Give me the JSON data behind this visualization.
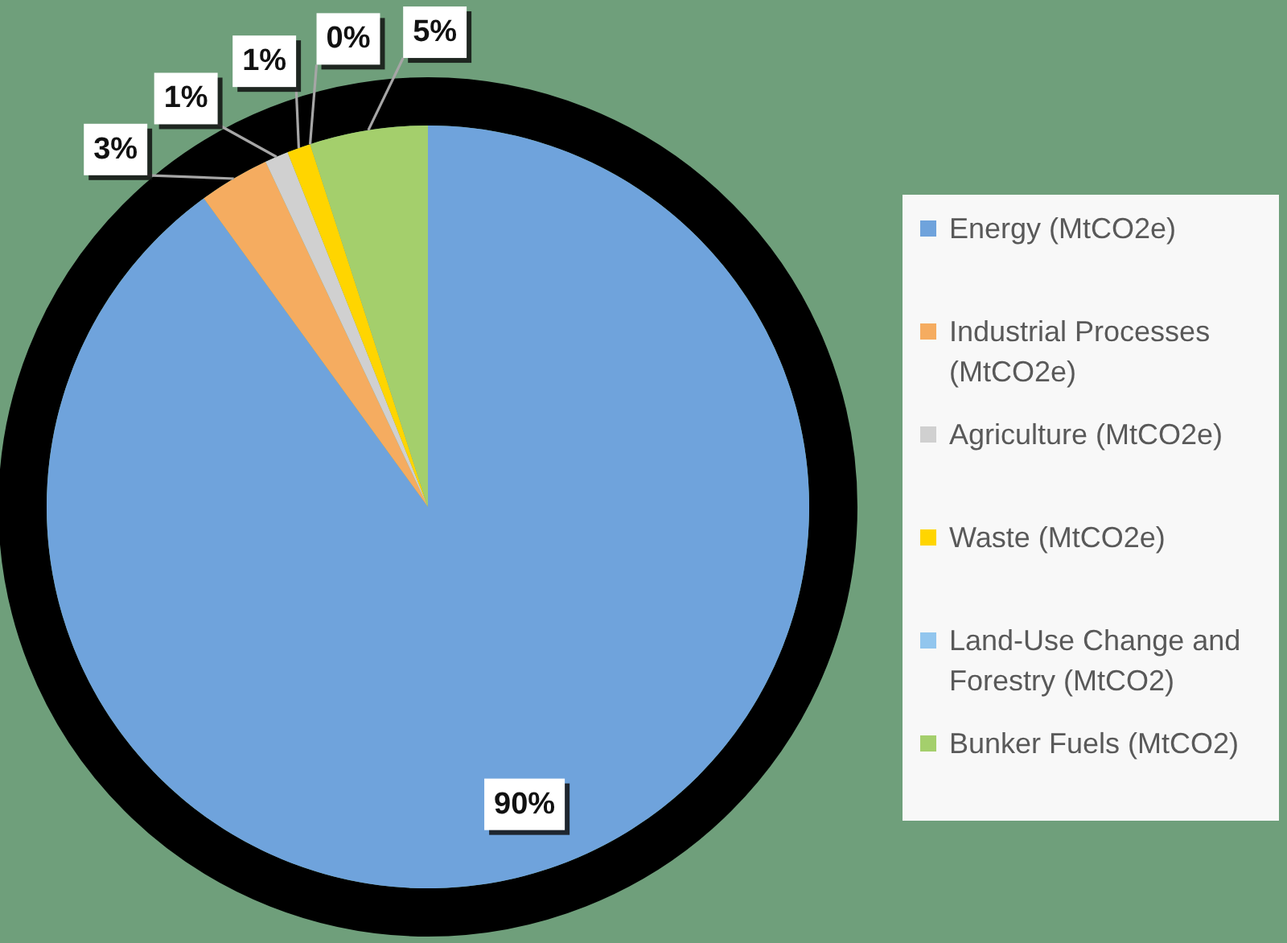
{
  "chart_data": {
    "type": "pie",
    "categories": [
      "Energy (MtCO2e)",
      "Industrial Processes (MtCO2e)",
      "Agriculture (MtCO2e)",
      "Waste (MtCO2e)",
      "Land-Use Change and Forestry (MtCO2)",
      "Bunker Fuels (MtCO2)"
    ],
    "values": [
      90,
      3,
      1,
      1,
      0,
      5
    ],
    "colors": [
      "#6fa3dc",
      "#f5ac60",
      "#d0d0d0",
      "#ffd500",
      "#92c6ee",
      "#a4cf6c"
    ],
    "value_labels": [
      "90%",
      "3%",
      "1%",
      "1%",
      "0%",
      "5%"
    ],
    "legend": "right"
  }
}
